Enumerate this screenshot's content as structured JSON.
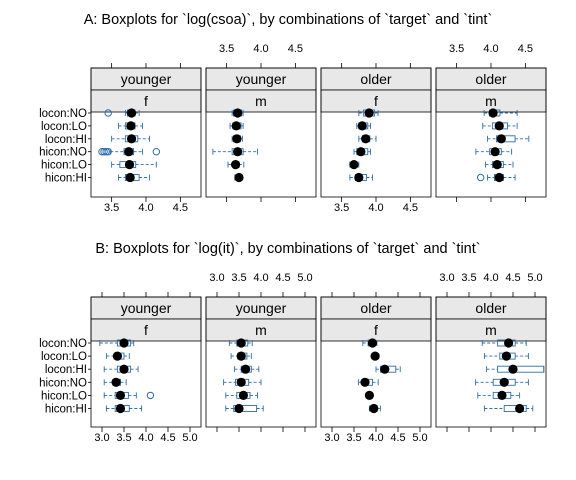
{
  "chart_data": [
    {
      "type": "boxplot",
      "title": "A: Boxplots for `log(csoa)`, by combinations of `target` and `tint`",
      "categories": [
        "locon:NO",
        "locon:LO",
        "locon:HI",
        "hicon:NO",
        "hicon:LO",
        "hicon:HI"
      ],
      "xlim": [
        3.2,
        4.8
      ],
      "xticks": [
        3.5,
        4.0,
        4.5
      ],
      "xtick_labels": [
        "3.5",
        "4.0",
        "4.5"
      ],
      "panels": [
        {
          "strip_top": "younger",
          "strip_bottom": "f",
          "boxes": [
            {
              "category": "locon:NO",
              "min": 3.7,
              "q1": 3.73,
              "median": 3.79,
              "q3": 3.84,
              "max": 3.9,
              "outliers": [
                3.45
              ]
            },
            {
              "category": "locon:LO",
              "min": 3.6,
              "q1": 3.7,
              "median": 3.78,
              "q3": 3.84,
              "max": 3.95,
              "outliers": []
            },
            {
              "category": "locon:HI",
              "min": 3.5,
              "q1": 3.7,
              "median": 3.79,
              "q3": 3.88,
              "max": 4.05,
              "outliers": []
            },
            {
              "category": "hicon:NO",
              "min": 3.48,
              "q1": 3.68,
              "median": 3.75,
              "q3": 3.82,
              "max": 3.95,
              "outliers": [
                3.36,
                3.39,
                3.42,
                3.45,
                4.15
              ]
            },
            {
              "category": "hicon:LO",
              "min": 3.5,
              "q1": 3.62,
              "median": 3.76,
              "q3": 3.85,
              "max": 4.15,
              "outliers": []
            },
            {
              "category": "hicon:HI",
              "min": 3.6,
              "q1": 3.7,
              "median": 3.77,
              "q3": 3.9,
              "max": 4.05,
              "outliers": []
            }
          ]
        },
        {
          "strip_top": "younger",
          "strip_bottom": "m",
          "boxes": [
            {
              "category": "locon:NO",
              "min": 3.58,
              "q1": 3.6,
              "median": 3.66,
              "q3": 3.72,
              "max": 3.74,
              "outliers": []
            },
            {
              "category": "locon:LO",
              "min": 3.55,
              "q1": 3.59,
              "median": 3.64,
              "q3": 3.71,
              "max": 3.74,
              "outliers": []
            },
            {
              "category": "locon:HI",
              "min": 3.58,
              "q1": 3.6,
              "median": 3.65,
              "q3": 3.7,
              "max": 3.73,
              "outliers": []
            },
            {
              "category": "hicon:NO",
              "min": 3.3,
              "q1": 3.58,
              "median": 3.66,
              "q3": 3.74,
              "max": 3.95,
              "outliers": []
            },
            {
              "category": "hicon:LO",
              "min": 3.52,
              "q1": 3.59,
              "median": 3.63,
              "q3": 3.68,
              "max": 3.75,
              "outliers": []
            },
            {
              "category": "hicon:HI",
              "min": 3.62,
              "q1": 3.64,
              "median": 3.68,
              "q3": 3.7,
              "max": 3.71,
              "outliers": []
            }
          ]
        },
        {
          "strip_top": "older",
          "strip_bottom": "f",
          "boxes": [
            {
              "category": "locon:NO",
              "min": 3.75,
              "q1": 3.82,
              "median": 3.9,
              "q3": 3.98,
              "max": 4.03,
              "outliers": []
            },
            {
              "category": "locon:LO",
              "min": 3.72,
              "q1": 3.75,
              "median": 3.8,
              "q3": 3.88,
              "max": 3.92,
              "outliers": []
            },
            {
              "category": "locon:HI",
              "min": 3.75,
              "q1": 3.8,
              "median": 3.85,
              "q3": 3.91,
              "max": 4.0,
              "outliers": []
            },
            {
              "category": "hicon:NO",
              "min": 3.68,
              "q1": 3.72,
              "median": 3.78,
              "q3": 3.88,
              "max": 3.92,
              "outliers": []
            },
            {
              "category": "hicon:LO",
              "min": 3.62,
              "q1": 3.65,
              "median": 3.68,
              "q3": 3.72,
              "max": 3.75,
              "outliers": []
            },
            {
              "category": "hicon:HI",
              "min": 3.62,
              "q1": 3.7,
              "median": 3.75,
              "q3": 3.86,
              "max": 3.95,
              "outliers": []
            }
          ]
        },
        {
          "strip_top": "older",
          "strip_bottom": "m",
          "boxes": [
            {
              "category": "locon:NO",
              "min": 3.9,
              "q1": 3.98,
              "median": 4.03,
              "q3": 4.13,
              "max": 4.38,
              "outliers": []
            },
            {
              "category": "locon:LO",
              "min": 3.88,
              "q1": 4.02,
              "median": 4.12,
              "q3": 4.24,
              "max": 4.38,
              "outliers": []
            },
            {
              "category": "locon:HI",
              "min": 3.95,
              "q1": 4.08,
              "median": 4.15,
              "q3": 4.35,
              "max": 4.55,
              "outliers": []
            },
            {
              "category": "hicon:NO",
              "min": 3.78,
              "q1": 3.98,
              "median": 4.06,
              "q3": 4.15,
              "max": 4.3,
              "outliers": []
            },
            {
              "category": "hicon:LO",
              "min": 3.92,
              "q1": 4.02,
              "median": 4.09,
              "q3": 4.18,
              "max": 4.32,
              "outliers": []
            },
            {
              "category": "hicon:HI",
              "min": 3.95,
              "q1": 4.05,
              "median": 4.12,
              "q3": 4.18,
              "max": 4.35,
              "outliers": [
                3.85
              ]
            }
          ]
        }
      ]
    },
    {
      "type": "boxplot",
      "title": "B: Boxplots for `log(it)`, by combinations of `target` and `tint`",
      "categories": [
        "locon:NO",
        "locon:LO",
        "locon:HI",
        "hicon:NO",
        "hicon:LO",
        "hicon:HI"
      ],
      "xlim": [
        2.75,
        5.25
      ],
      "xticks": [
        3.0,
        3.5,
        4.0,
        4.5,
        5.0
      ],
      "xtick_labels": [
        "3.0",
        "3.5",
        "4.0",
        "4.5",
        "5.0"
      ],
      "panels": [
        {
          "strip_top": "younger",
          "strip_bottom": "f",
          "boxes": [
            {
              "category": "locon:NO",
              "min": 2.95,
              "q1": 3.35,
              "median": 3.5,
              "q3": 3.65,
              "max": 3.72,
              "outliers": []
            },
            {
              "category": "locon:LO",
              "min": 3.1,
              "q1": 3.28,
              "median": 3.35,
              "q3": 3.5,
              "max": 3.62,
              "outliers": []
            },
            {
              "category": "locon:HI",
              "min": 3.05,
              "q1": 3.35,
              "median": 3.5,
              "q3": 3.65,
              "max": 3.82,
              "outliers": []
            },
            {
              "category": "hicon:NO",
              "min": 3.05,
              "q1": 3.25,
              "median": 3.32,
              "q3": 3.42,
              "max": 3.55,
              "outliers": []
            },
            {
              "category": "hicon:LO",
              "min": 3.05,
              "q1": 3.3,
              "median": 3.42,
              "q3": 3.6,
              "max": 3.78,
              "outliers": [
                4.1
              ]
            },
            {
              "category": "hicon:HI",
              "min": 3.1,
              "q1": 3.3,
              "median": 3.42,
              "q3": 3.62,
              "max": 3.9,
              "outliers": []
            }
          ]
        },
        {
          "strip_top": "younger",
          "strip_bottom": "m",
          "boxes": [
            {
              "category": "locon:NO",
              "min": 3.28,
              "q1": 3.45,
              "median": 3.55,
              "q3": 3.7,
              "max": 3.8,
              "outliers": []
            },
            {
              "category": "locon:LO",
              "min": 3.32,
              "q1": 3.47,
              "median": 3.55,
              "q3": 3.68,
              "max": 3.78,
              "outliers": []
            },
            {
              "category": "locon:HI",
              "min": 3.4,
              "q1": 3.55,
              "median": 3.65,
              "q3": 3.78,
              "max": 3.95,
              "outliers": []
            },
            {
              "category": "hicon:NO",
              "min": 3.15,
              "q1": 3.42,
              "median": 3.55,
              "q3": 3.72,
              "max": 4.0,
              "outliers": []
            },
            {
              "category": "hicon:LO",
              "min": 3.2,
              "q1": 3.45,
              "median": 3.6,
              "q3": 3.75,
              "max": 3.92,
              "outliers": []
            },
            {
              "category": "hicon:HI",
              "min": 3.2,
              "q1": 3.38,
              "median": 3.5,
              "q3": 3.9,
              "max": 4.05,
              "outliers": []
            }
          ]
        },
        {
          "strip_top": "older",
          "strip_bottom": "f",
          "boxes": [
            {
              "category": "locon:NO",
              "min": 3.7,
              "q1": 3.82,
              "median": 3.92,
              "q3": 3.98,
              "max": 4.02,
              "outliers": []
            },
            {
              "category": "locon:LO",
              "min": 3.92,
              "q1": 3.95,
              "median": 3.98,
              "q3": 4.03,
              "max": 4.06,
              "outliers": []
            },
            {
              "category": "locon:HI",
              "min": 4.0,
              "q1": 4.1,
              "median": 4.2,
              "q3": 4.45,
              "max": 4.55,
              "outliers": []
            },
            {
              "category": "hicon:NO",
              "min": 3.6,
              "q1": 3.7,
              "median": 3.75,
              "q3": 3.92,
              "max": 4.05,
              "outliers": []
            },
            {
              "category": "hicon:LO",
              "min": 3.78,
              "q1": 3.8,
              "median": 3.85,
              "q3": 3.88,
              "max": 3.9,
              "outliers": []
            },
            {
              "category": "hicon:HI",
              "min": 3.85,
              "q1": 3.9,
              "median": 3.95,
              "q3": 4.02,
              "max": 4.1,
              "outliers": []
            }
          ]
        },
        {
          "strip_top": "older",
          "strip_bottom": "m",
          "boxes": [
            {
              "category": "locon:NO",
              "min": 3.8,
              "q1": 4.15,
              "median": 4.4,
              "q3": 4.55,
              "max": 4.8,
              "outliers": []
            },
            {
              "category": "locon:LO",
              "min": 3.85,
              "q1": 4.2,
              "median": 4.35,
              "q3": 4.55,
              "max": 4.85,
              "outliers": []
            },
            {
              "category": "locon:HI",
              "min": 3.9,
              "q1": 4.15,
              "median": 4.5,
              "q3": 5.2,
              "max": 5.2,
              "outliers": []
            },
            {
              "category": "hicon:NO",
              "min": 3.65,
              "q1": 4.05,
              "median": 4.3,
              "q3": 4.55,
              "max": 4.85,
              "outliers": []
            },
            {
              "category": "hicon:LO",
              "min": 3.7,
              "q1": 4.05,
              "median": 4.25,
              "q3": 4.45,
              "max": 4.65,
              "outliers": []
            },
            {
              "category": "hicon:HI",
              "min": 3.85,
              "q1": 4.3,
              "median": 4.65,
              "q3": 4.8,
              "max": 4.95,
              "outliers": []
            }
          ]
        }
      ]
    }
  ]
}
